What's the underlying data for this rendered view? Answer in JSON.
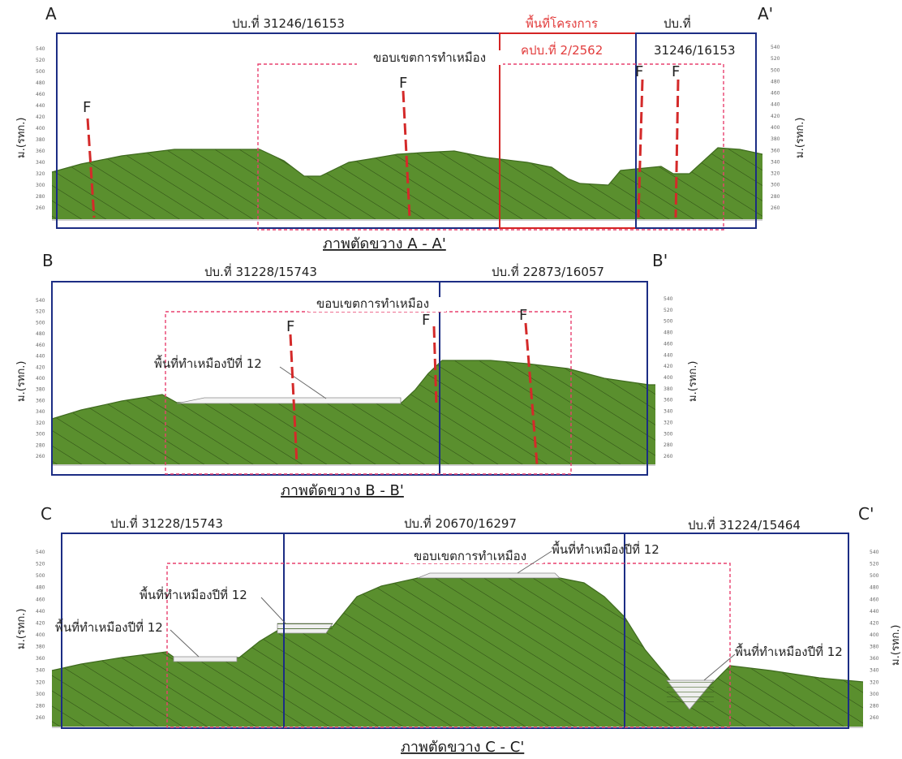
{
  "sections": [
    {
      "id": "a",
      "start_label": "A",
      "end_label": "A'",
      "caption": "ภาพตัดขวาง A - A'",
      "parcels": [
        {
          "text": "ปบ.ที่ 31246/16153",
          "color": "dark"
        },
        {
          "text": "ปบ.ที่",
          "color": "dark"
        },
        {
          "text": "31246/16153",
          "color": "dark"
        },
        {
          "text": "พื้นที่โครงการ",
          "color": "red"
        },
        {
          "text": "คปบ.ที่ 2/2562",
          "color": "red"
        }
      ],
      "boundary_label": "ขอบเขตการทำเหมือง",
      "fault_labels": [
        "F",
        "F",
        "F",
        "F"
      ],
      "axis_unit_left": "ม.(รทก.)",
      "axis_unit_right": "ม.(รทก.)",
      "mine_labels": []
    },
    {
      "id": "b",
      "start_label": "B",
      "end_label": "B'",
      "caption": "ภาพตัดขวาง B - B'",
      "parcels": [
        {
          "text": "ปบ.ที่ 31228/15743",
          "color": "dark"
        },
        {
          "text": "ปบ.ที่ 22873/16057",
          "color": "dark"
        }
      ],
      "boundary_label": "ขอบเขตการทำเหมือง",
      "fault_labels": [
        "F",
        "F",
        "F"
      ],
      "axis_unit_left": "ม.(รทก.)",
      "axis_unit_right": "ม.(รทก.)",
      "mine_labels": [
        "พื้นที่ทำเหมืองปีที่ 12"
      ]
    },
    {
      "id": "c",
      "start_label": "C",
      "end_label": "C'",
      "caption": "ภาพตัดขวาง C - C'",
      "parcels": [
        {
          "text": "ปบ.ที่ 31228/15743",
          "color": "dark"
        },
        {
          "text": "ปบ.ที่ 20670/16297",
          "color": "dark"
        },
        {
          "text": "ปบ.ที่ 31224/15464",
          "color": "dark"
        }
      ],
      "boundary_label": "ขอบเขตการทำเหมือง",
      "fault_labels": [],
      "axis_unit_left": "ม.(รทก.)",
      "axis_unit_right": "ม.(รทก.)",
      "mine_labels": [
        "พื้นที่ทำเหมืองปีที่ 12",
        "พื้นที่ทำเหมืองปีที่ 12",
        "พื้นที่ทำเหมืองปีที่ 12",
        "พื้นที่ทำเหมืองปีที่ 12"
      ]
    }
  ],
  "elevation_ticks": [
    "540",
    "520",
    "500",
    "480",
    "460",
    "440",
    "420",
    "400",
    "380",
    "360",
    "340",
    "320",
    "300",
    "280",
    "260"
  ],
  "colors": {
    "terrain": "#5a8f2e",
    "hatch": "#2c4a14",
    "parcel_line": "#1c2d84",
    "project_line": "#d42424",
    "boundary_dash": "#e8406e",
    "fault": "#d42a2a",
    "label": "#222222",
    "red_label": "#e23c3c"
  }
}
